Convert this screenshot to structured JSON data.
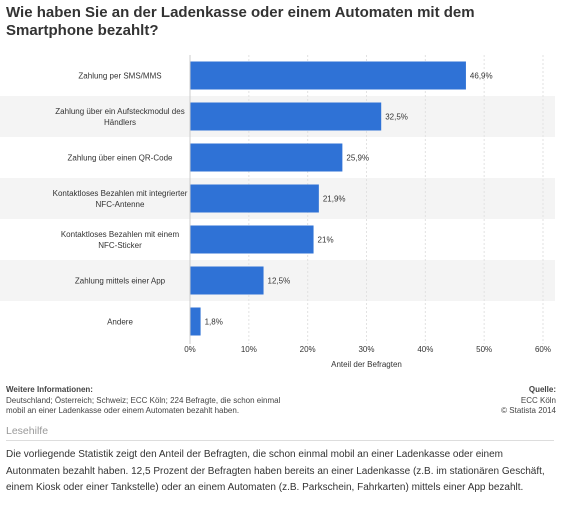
{
  "title": "Wie haben Sie an der Ladenkasse oder einem Automaten mit dem Smartphone bezahlt?",
  "chart_data": {
    "type": "bar",
    "orientation": "horizontal",
    "categories": [
      [
        "Zahlung per SMS/MMS"
      ],
      [
        "Zahlung über ein Aufsteckmodul des",
        "Händlers"
      ],
      [
        "Zahlung über einen QR-Code"
      ],
      [
        "Kontaktloses Bezahlen mit integrierter",
        "NFC-Antenne"
      ],
      [
        "Kontaktloses Bezahlen mit einem",
        "NFC-Sticker"
      ],
      [
        "Zahlung mittels einer App"
      ],
      [
        "Andere"
      ]
    ],
    "values": [
      46.9,
      32.5,
      25.9,
      21.9,
      21,
      12.5,
      1.8
    ],
    "value_labels": [
      "46,9%",
      "32,5%",
      "25,9%",
      "21,9%",
      "21%",
      "12,5%",
      "1,8%"
    ],
    "xlim": [
      0,
      60
    ],
    "xticks": [
      0,
      10,
      20,
      30,
      40,
      50,
      60
    ],
    "xtick_labels": [
      "0%",
      "10%",
      "20%",
      "30%",
      "40%",
      "50%",
      "60%"
    ],
    "xlabel": "Anteil der Befragten",
    "grid": true,
    "bar_color": "#2f72d6"
  },
  "info": {
    "heading": "Weitere Informationen:",
    "line1": "Deutschland; Österreich; Schweiz; ECC Köln; 224 Befragte, die schon einmal",
    "line2": "mobil an einer Ladenkasse oder einem Automaten bezahlt haben."
  },
  "source": {
    "heading": "Quelle:",
    "line1": "ECC Köln",
    "line2": "© Statista 2014"
  },
  "lesehilfe": "Lesehilfe",
  "description": "Die vorliegende Statistik zeigt den Anteil der Befragten, die schon einmal mobil an einer Ladenkasse oder einem Autonmaten bezahlt haben. 12,5 Prozent der Befragten haben bereits an einer Ladenkasse (z.B. im stationären Geschäft, einem Kiosk oder einer Tankstelle) oder an einem Automaten (z.B. Parkschein, Fahrkarten) mittels einer App bezahlt."
}
